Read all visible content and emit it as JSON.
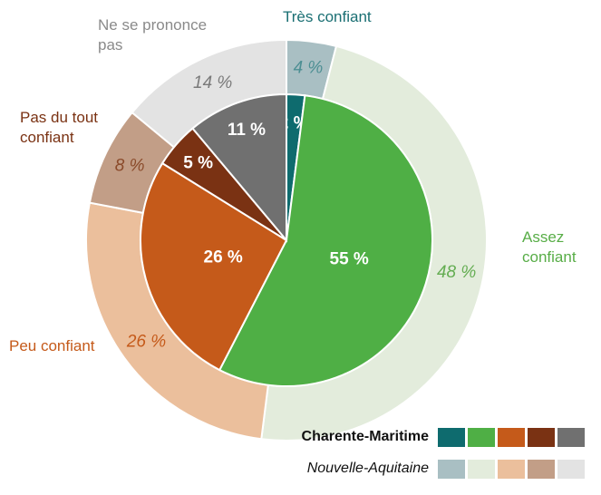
{
  "chart_data": {
    "type": "pie",
    "categories": [
      "Très confiant",
      "Assez confiant",
      "Peu confiant",
      "Pas du tout confiant",
      "Ne se prononce pas"
    ],
    "category_colors": [
      "#1a6f73",
      "#58ad47",
      "#c55a1a",
      "#7a3213",
      "#8a8a8a"
    ],
    "series": [
      {
        "name": "Charente-Maritime",
        "values": [
          2,
          55,
          26,
          5,
          11
        ],
        "value_labels": [
          "2 %",
          "55 %",
          "26 %",
          "5 %",
          "11 %"
        ],
        "colors": [
          "#0e6b6e",
          "#4faf45",
          "#c55a1a",
          "#7a3213",
          "#707070"
        ]
      },
      {
        "name": "Nouvelle-Aquitaine",
        "values": [
          4,
          48,
          26,
          8,
          14
        ],
        "value_labels": [
          "4 %",
          "48 %",
          "26 %",
          "8 %",
          "14 %"
        ],
        "colors": [
          "#a9bfc3",
          "#e3ecdc",
          "#ebbf9c",
          "#c29e87",
          "#e3e3e3"
        ],
        "label_colors": [
          "#4d8f93",
          "#64ad52",
          "#c55a1a",
          "#8a4a2a",
          "#7a7a7a"
        ]
      }
    ]
  }
}
